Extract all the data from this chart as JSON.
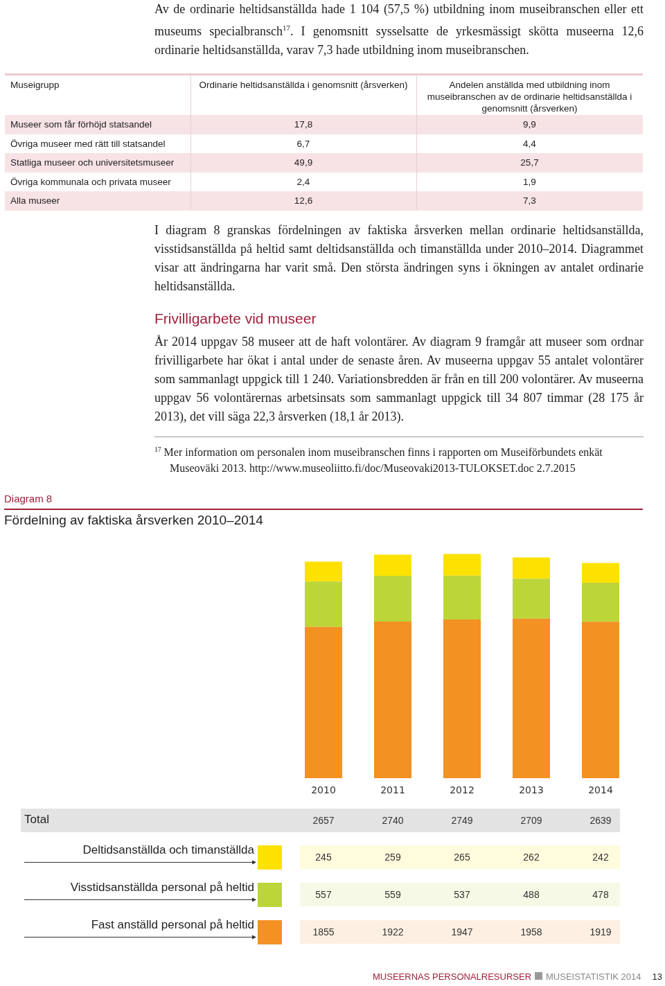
{
  "chart_data": {
    "type": "bar",
    "stacked": true,
    "title": "Fördelning av faktiska årsverken 2010–2014",
    "categories": [
      "2010",
      "2011",
      "2012",
      "2013",
      "2014"
    ],
    "series": [
      {
        "name": "Fast anställd personal på heltid",
        "color": "#f39123",
        "values": [
          1855,
          1922,
          1947,
          1958,
          1919
        ]
      },
      {
        "name": "Visstidsanställda personal på heltid",
        "color": "#bcd539",
        "values": [
          557,
          559,
          537,
          488,
          478
        ]
      },
      {
        "name": "Deltidsanställda och timanställda",
        "color": "#fde101",
        "values": [
          245,
          259,
          265,
          262,
          242
        ]
      }
    ],
    "data_labels": true,
    "legend": "bottom",
    "grid": false,
    "annotations": [
      "Av de ordinarie heltidsanställda hade 1 104 (57,5 %) utbildning inom museibranschen eller ett museums specialbransch$^{17}$. I genomsnitt sysselsatte de yrkesmässigt skötta museerna 12,6 ordinarie heltidsanställda, varav 7,3 hade utbildning inom museibranschen.",
      "Museigrupp",
      "Ordinarie heltidsanställda i genomsnitt (årsverken)",
      "Andelen anställda med utbildning inom museibranschen av de ordinarie heltidsanställda i genomsnitt (årsverken)",
      "Museer som får förhöjd statsandel",
      "17,8",
      "9,9",
      "Övriga museer med rätt till statsandel",
      "6,7",
      "4,4",
      "Statliga museer och universitetsmuseer",
      "49,9",
      "25,7",
      "Övriga kommunala och privata museer",
      "2,4",
      "1,9",
      "Alla museer",
      "12,6",
      "7,3",
      "I diagram 8 granskas fördelningen av faktiska årsverken mellan ordinarie heltidsanställda, visstidsanställda på heltid samt deltidsanställda och timanställda under 2010–2014. Diagrammet visar att ändringarna har varit små. Den största ändringen syns i ökningen av antalet ordinarie heltidsanställda.",
      "Frivilligarbete vid museer",
      "År 2014 uppgav 58 museer att de haft volontärer. Av diagram 9 framgår att museer som ordnar frivilligarbete har ökat i antal under de senaste åren. Av museerna uppgav 55 antalet volontärer som sammanlagt uppgick till 1 240. Variationsbredden är från en till 200 volontärer. Av museerna uppgav 56 volontärernas arbetsinsats som sammanlagt uppgick till 34 807 timmar (28 175 år 2013), det vill säga 22,3 årsverken (18,1 år 2013).",
      "$^{17}$ Mer information om personalen inom museibranschen finns i rapporten om Museiförbundets enkät Museoväki 2013. http://www.museoliitto.fi/doc/Museovaki2013-TULOKSET.doc 2.7.2015",
      "Diagram 8",
      "MUSEERNAS PERSONALRESURSER",
      "MUSEISTATISTIK 2014",
      "13",
      "Total",
      "2657",
      "2740",
      "2749",
      "2709",
      "2639"
    ]
  }
}
